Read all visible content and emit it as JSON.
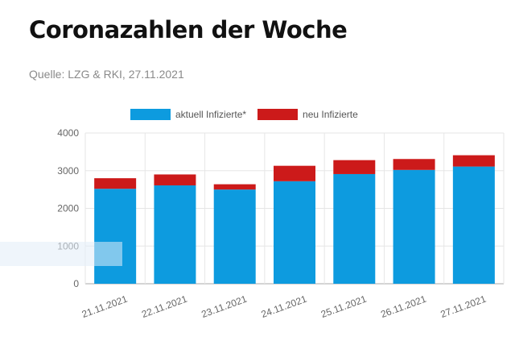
{
  "header": {
    "title": "Coronazahlen der Woche",
    "source": "Quelle: LZG & RKI, 27.11.2021"
  },
  "colors": {
    "active": "#0d9bdf",
    "new": "#cc1a1a",
    "grid": "#e6e6e6",
    "axis": "#aaaaaa"
  },
  "chart_data": {
    "type": "bar",
    "stacked": true,
    "categories": [
      "21.11.2021",
      "22.11.2021",
      "23.11.2021",
      "24.11.2021",
      "25.11.2021",
      "26.11.2021",
      "27.11.2021"
    ],
    "series": [
      {
        "name": "aktuell Infizierte*",
        "values": [
          2520,
          2610,
          2500,
          2720,
          2910,
          3020,
          3110
        ]
      },
      {
        "name": "neu Infizierte",
        "values": [
          280,
          290,
          140,
          410,
          370,
          290,
          300
        ]
      }
    ],
    "ylim": [
      0,
      4000
    ],
    "yticks": [
      0,
      1000,
      2000,
      3000,
      4000
    ],
    "grid": true,
    "legend": "top"
  }
}
